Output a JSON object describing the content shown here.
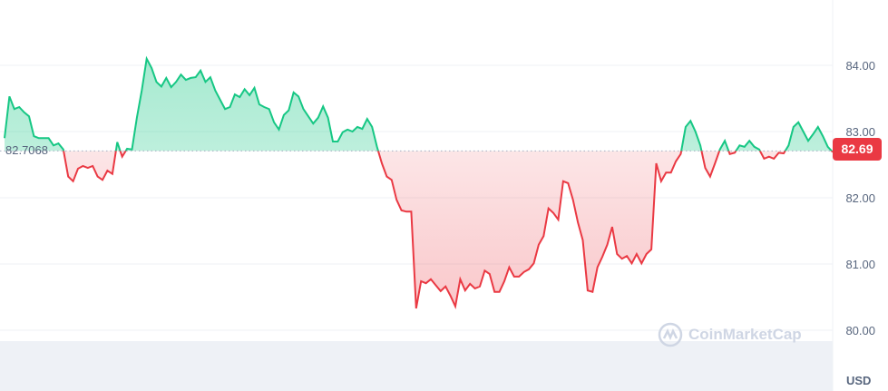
{
  "chart_data": {
    "type": "line",
    "currency": "USD",
    "baseline": {
      "value": 82.7068,
      "label": "82.7068"
    },
    "current": {
      "value": 82.69,
      "label": "82.69"
    },
    "yticks": [
      {
        "value": 84,
        "label": "84.00"
      },
      {
        "value": 83,
        "label": "83.00"
      },
      {
        "value": 82,
        "label": "82.00"
      },
      {
        "value": 81,
        "label": "81.00"
      },
      {
        "value": 80,
        "label": "80.00"
      }
    ],
    "ylim": [
      79.1,
      84.99
    ],
    "grid": true,
    "watermark": "CoinMarketCap",
    "colors": {
      "up": "#16c784",
      "down": "#ea3943",
      "grid": "#eff2f5",
      "text": "#58667e"
    },
    "values": [
      82.9,
      83.53,
      83.34,
      83.37,
      83.29,
      83.23,
      82.93,
      82.9,
      82.9,
      82.9,
      82.79,
      82.82,
      82.73,
      82.32,
      82.25,
      82.44,
      82.48,
      82.45,
      82.48,
      82.32,
      82.27,
      82.41,
      82.36,
      82.84,
      82.62,
      82.74,
      82.73,
      83.21,
      83.62,
      84.1,
      83.96,
      83.75,
      83.68,
      83.81,
      83.67,
      83.75,
      83.86,
      83.78,
      83.81,
      83.82,
      83.92,
      83.75,
      83.82,
      83.62,
      83.48,
      83.34,
      83.37,
      83.56,
      83.52,
      83.64,
      83.55,
      83.66,
      83.41,
      83.37,
      83.34,
      83.14,
      83.03,
      83.25,
      83.32,
      83.59,
      83.53,
      83.34,
      83.23,
      83.12,
      83.21,
      83.38,
      83.21,
      82.85,
      82.85,
      82.99,
      83.03,
      83.0,
      83.07,
      83.04,
      83.19,
      83.07,
      82.77,
      82.52,
      82.32,
      82.27,
      81.97,
      81.81,
      81.79,
      81.79,
      80.33,
      80.74,
      80.71,
      80.77,
      80.68,
      80.59,
      80.66,
      80.52,
      80.36,
      80.77,
      80.6,
      80.7,
      80.63,
      80.66,
      80.9,
      80.85,
      80.58,
      80.58,
      80.74,
      80.95,
      80.81,
      80.81,
      80.88,
      80.92,
      81.01,
      81.29,
      81.42,
      81.84,
      81.77,
      81.67,
      82.25,
      82.22,
      81.97,
      81.63,
      81.36,
      80.6,
      80.58,
      80.95,
      81.11,
      81.29,
      81.56,
      81.15,
      81.08,
      81.12,
      81.01,
      81.15,
      81.01,
      81.15,
      81.22,
      82.52,
      82.25,
      82.38,
      82.38,
      82.55,
      82.66,
      83.07,
      83.16,
      83.0,
      82.79,
      82.45,
      82.32,
      82.52,
      82.73,
      82.86,
      82.66,
      82.68,
      82.79,
      82.77,
      82.86,
      82.77,
      82.73,
      82.59,
      82.62,
      82.59,
      82.68,
      82.67,
      82.79,
      83.07,
      83.14,
      83.0,
      82.86,
      82.96,
      83.07,
      82.93,
      82.77,
      82.69
    ]
  }
}
